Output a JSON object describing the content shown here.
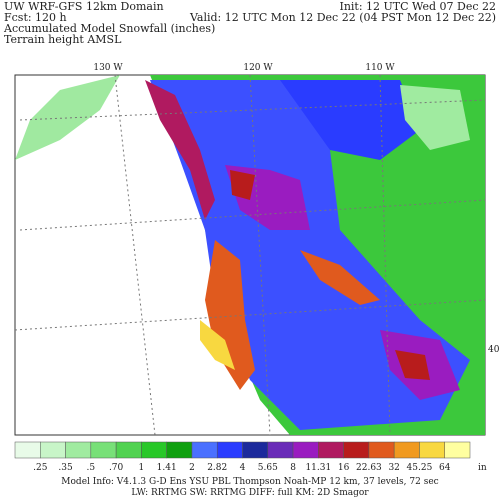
{
  "header": {
    "model": "UW WRF-GFS 12km Domain",
    "forecast": "Fcst:  120 h",
    "init": "Init: 12 UTC Wed 07 Dec 22",
    "valid": "Valid: 12 UTC Mon 12 Dec 22 (04 PST Mon 12 Dec 22)",
    "field": "Accumulated Model Snowfall (inches)",
    "contours": "Terrain height AMSL"
  },
  "map": {
    "longitudes": [
      "130 W",
      "120 W",
      "110 W"
    ],
    "latitudes": [
      "40"
    ]
  },
  "colorbar": {
    "labels": [
      ".25",
      ".35",
      ".5",
      ".70",
      "1",
      "1.41",
      "2",
      "2.82",
      "4",
      "5.65",
      "8",
      "11.31",
      "16",
      "22.63",
      "32",
      "45.25",
      "64"
    ],
    "unit": "in",
    "colors": [
      "#e8fbe8",
      "#c8f5c8",
      "#a0eba0",
      "#78e078",
      "#50d250",
      "#28c828",
      "#10a010",
      "#4a70ff",
      "#2a3cff",
      "#1c2a9c",
      "#6a2cb8",
      "#9a1cc0",
      "#b01a60",
      "#b81c1c",
      "#e05a1e",
      "#f09a20",
      "#f8d840",
      "#ffffa0"
    ]
  },
  "footer": {
    "line1": "Model Info: V4.1.3    G-D Ens YSU PBL  Thompson     Noah-MP   12 km,   37 levels,   72 sec",
    "line2": "LW: RRTMG  SW: RRTMG    DIFF: full    KM: 2D Smagor"
  }
}
